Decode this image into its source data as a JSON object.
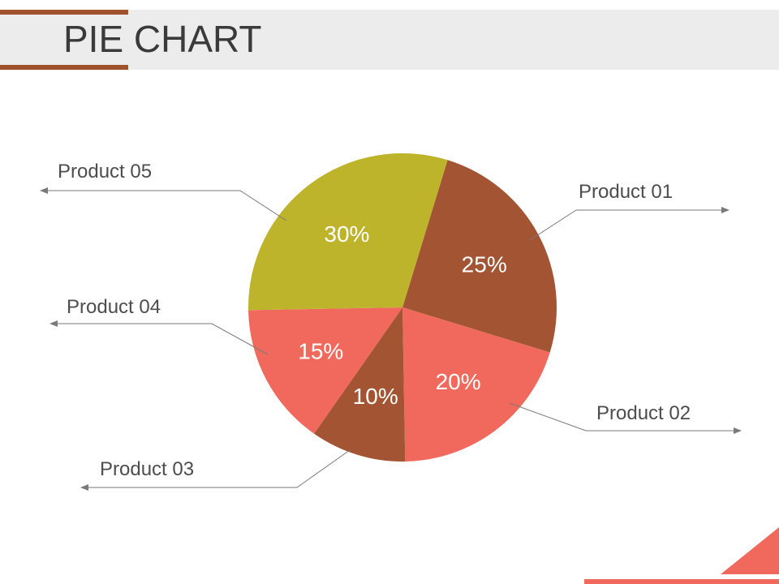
{
  "slide": {
    "title": "PIE CHART"
  },
  "theme": {
    "accent": "#a0522d",
    "title_bar_bg": "#ececec",
    "corner_accent": "#f0695c",
    "leader_line": "#7a7a7a"
  },
  "chart_data": {
    "type": "pie",
    "title": "",
    "slices": [
      {
        "category": "Product 01",
        "value": 25,
        "label": "25%",
        "color": "#a35533"
      },
      {
        "category": "Product 02",
        "value": 20,
        "label": "20%",
        "color": "#f0695c"
      },
      {
        "category": "Product 03",
        "value": 10,
        "label": "10%",
        "color": "#a35533"
      },
      {
        "category": "Product 04",
        "value": 15,
        "label": "15%",
        "color": "#f0695c"
      },
      {
        "category": "Product 05",
        "value": 30,
        "label": "30%",
        "color": "#bdb42c"
      }
    ],
    "legend": "callouts"
  }
}
